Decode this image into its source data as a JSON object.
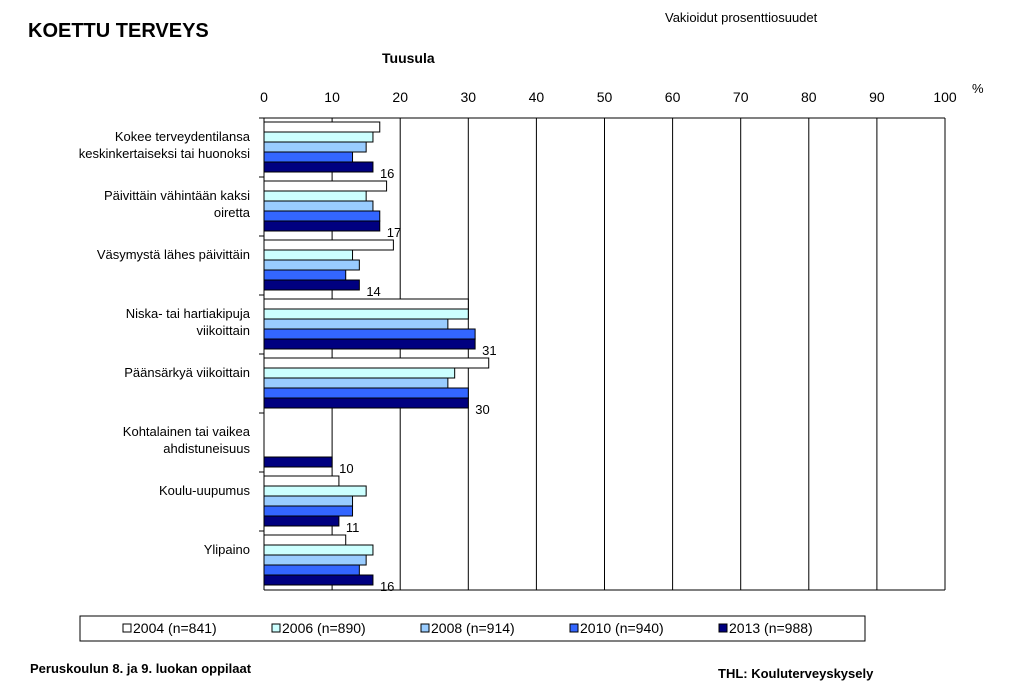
{
  "chart_data": {
    "type": "hbar",
    "title": "KOETTU TERVEYS",
    "note": "Vakioidut prosenttiosuudet",
    "subtitle": "Tuusula",
    "x_unit": "%",
    "footer_left": "Peruskoulun 8. ja 9. luokan oppilaat",
    "footer_right": "THL: Kouluterveyskysely",
    "categories": [
      "Kokee terveydentilansa\nkeskinkertaiseksi tai huonoksi",
      "Päivittäin vähintään kaksi\noiretta",
      "Väsymystä lähes päivittäin",
      "Niska- tai hartiakipuja\nviikoittain",
      "Päänsärkyä viikoittain",
      "Kohtalainen tai vaikea\nahdistuneisuus",
      "Koulu-uupumus",
      "Ylipaino"
    ],
    "series": [
      {
        "name": "2004 (n=841)",
        "color": "#ffffff",
        "values": [
          17,
          18,
          19,
          30,
          33,
          null,
          11,
          12
        ]
      },
      {
        "name": "2006 (n=890)",
        "color": "#ccffff",
        "values": [
          16,
          15,
          13,
          30,
          28,
          null,
          15,
          16
        ]
      },
      {
        "name": "2008 (n=914)",
        "color": "#99ccff",
        "values": [
          15,
          16,
          14,
          27,
          27,
          null,
          13,
          15
        ]
      },
      {
        "name": "2010 (n=940)",
        "color": "#3366ff",
        "values": [
          13,
          17,
          12,
          31,
          30,
          null,
          13,
          14
        ]
      },
      {
        "name": "2013 (n=988)",
        "color": "#000080",
        "values": [
          16,
          17,
          14,
          31,
          30,
          10,
          11,
          16
        ],
        "data_labels": true
      }
    ],
    "xlim": [
      0,
      100
    ],
    "xticks": [
      0,
      10,
      20,
      30,
      40,
      50,
      60,
      70,
      80,
      90,
      100
    ],
    "grid": true
  }
}
